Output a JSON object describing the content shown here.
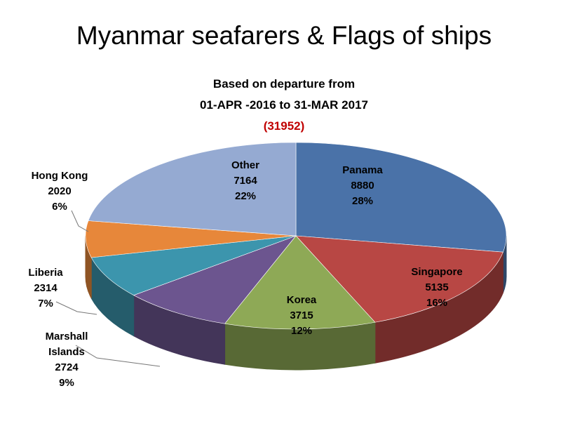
{
  "chart_data": {
    "type": "pie3d",
    "title": "Myanmar seafarers & Flags of ships",
    "subtitle": [
      "Based on departure from",
      "01-APR -2016 to 31-MAR 2017"
    ],
    "total_label": "(31952)",
    "categories": [
      "Panama",
      "Singapore",
      "Korea",
      "Marshall Islands",
      "Liberia",
      "Hong Kong",
      "Other"
    ],
    "values": [
      8880,
      5135,
      3715,
      2724,
      2314,
      2020,
      7164
    ],
    "percent_labels": [
      "28%",
      "16%",
      "12%",
      "9%",
      "7%",
      "6%",
      "22%"
    ],
    "colors": [
      "#4a72a8",
      "#b84744",
      "#8ea956",
      "#6c558f",
      "#3c95ad",
      "#e7873a",
      "#95aad2"
    ]
  }
}
